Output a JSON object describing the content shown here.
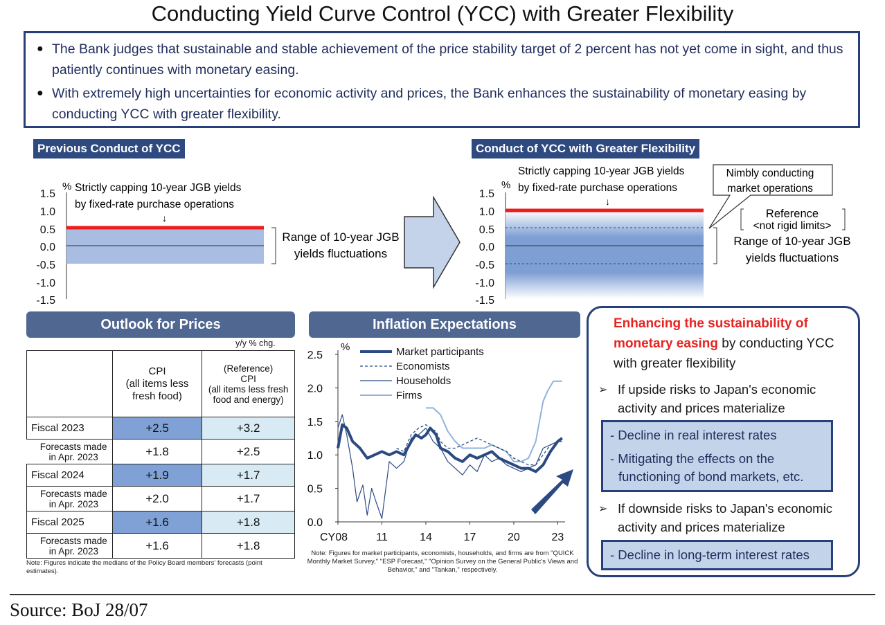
{
  "title": "Conducting Yield Curve Control (YCC) with Greater Flexibility",
  "intro": [
    "The Bank judges that sustainable and stable achievement of the price stability target of 2 percent has not yet come in sight, and thus patiently continues with monetary easing.",
    "With extremely high uncertainties for economic activity and prices, the Bank enhances the sustainability of monetary easing by conducting YCC with greater flexibility."
  ],
  "prev": {
    "header": "Previous Conduct of YCC",
    "unit": "%",
    "yticks": [
      "1.5",
      "1.0",
      "0.5",
      "0.0",
      "-0.5",
      "-1.0",
      "-1.5"
    ],
    "cap_line1": "Strictly capping 10-year JGB yields",
    "cap_line2": "by fixed-rate purchase operations",
    "arrow": "↓",
    "range_line1": "Range of 10-year JGB",
    "range_line2": "yields fluctuations",
    "cap": 0.5,
    "range": [
      -0.5,
      0.5
    ],
    "ylim": [
      -1.5,
      1.5
    ]
  },
  "new": {
    "header": "Conduct of YCC with Greater Flexibility",
    "unit": "%",
    "yticks": [
      "1.5",
      "1.0",
      "0.5",
      "0.0",
      "-0.5",
      "-1.0",
      "-1.5"
    ],
    "cap_line1": "Strictly capping 10-year JGB yields",
    "cap_line2": "by fixed-rate purchase operations",
    "arrow": "↓",
    "callout_line1": "Nimbly conducting",
    "callout_line2": "market operations",
    "ref_line1": "Reference",
    "ref_line2": "<not rigid limits>",
    "range_line1": "Range of 10-year JGB",
    "range_line2": "yields fluctuations",
    "cap": 1.0,
    "reference": [
      -0.5,
      0.5
    ],
    "ylim": [
      -1.5,
      1.5
    ]
  },
  "outlook": {
    "header": "Outlook for Prices",
    "unit": "y/y % chg.",
    "col1_l1": "CPI",
    "col1_l2": "(all items less",
    "col1_l3": "fresh food)",
    "col2_l1": "(Reference)",
    "col2_l2": "CPI",
    "col2_l3": "(all items less fresh",
    "col2_l4": "food and energy)",
    "rows": [
      {
        "label": "Fiscal 2023",
        "cpi": "+2.5",
        "core": "+3.2",
        "sub_l1": "Forecasts made",
        "sub_l2": "in Apr. 2023",
        "sub_cpi": "+1.8",
        "sub_core": "+2.5"
      },
      {
        "label": "Fiscal 2024",
        "cpi": "+1.9",
        "core": "+1.7",
        "sub_l1": "Forecasts made",
        "sub_l2": "in Apr. 2023",
        "sub_cpi": "+2.0",
        "sub_core": "+1.7"
      },
      {
        "label": "Fiscal 2025",
        "cpi": "+1.6",
        "core": "+1.8",
        "sub_l1": "Forecasts made",
        "sub_l2": "in Apr. 2023",
        "sub_cpi": "+1.6",
        "sub_core": "+1.8"
      }
    ],
    "note": "Note: Figures indicate the medians of the Policy Board members' forecasts (point estimates)."
  },
  "inflation": {
    "header": "Inflation Expectations",
    "note": "Note: Figures for market participants, economists, households, and firms are from \"QUICK Monthly Market Survey,\" \"ESP Forecast,\" \"Opinion Survey on the General Public's Views and Behavior,\" and \"Tankan,\" respectively."
  },
  "chart_data": {
    "type": "line",
    "title": "Inflation Expectations",
    "ylabel": "%",
    "ylim": [
      0,
      2.5
    ],
    "yticks": [
      "0.0",
      "0.5",
      "1.0",
      "1.5",
      "2.0",
      "2.5"
    ],
    "xlim": [
      2008,
      2023.5
    ],
    "xticks": [
      {
        "x": 2008,
        "label": "CY08"
      },
      {
        "x": 2011,
        "label": "11"
      },
      {
        "x": 2014,
        "label": "14"
      },
      {
        "x": 2017,
        "label": "17"
      },
      {
        "x": 2020,
        "label": "20"
      },
      {
        "x": 2023,
        "label": "23"
      }
    ],
    "series": [
      {
        "name": "Market participants",
        "color": "#2b4a82",
        "width": 4,
        "dash": "",
        "x": [
          2008,
          2008.3,
          2008.6,
          2009,
          2009.5,
          2010,
          2010.5,
          2011,
          2011.5,
          2012,
          2012.5,
          2013,
          2013.3,
          2013.7,
          2014,
          2014.3,
          2014.7,
          2015,
          2015.5,
          2016,
          2016.5,
          2017,
          2017.5,
          2018,
          2018.5,
          2019,
          2019.5,
          2020,
          2020.5,
          2021,
          2021.5,
          2022,
          2022.5,
          2023,
          2023.3
        ],
        "y": [
          1.1,
          1.45,
          1.4,
          1.2,
          1.1,
          0.95,
          1.0,
          1.05,
          1.0,
          1.05,
          1.0,
          1.2,
          1.3,
          1.25,
          1.3,
          1.4,
          1.3,
          1.1,
          1.05,
          0.95,
          0.9,
          1.0,
          0.95,
          1.0,
          1.05,
          0.95,
          0.9,
          0.85,
          0.8,
          0.8,
          0.75,
          0.85,
          1.05,
          1.2,
          1.25
        ]
      },
      {
        "name": "Economists",
        "color": "#2b4a82",
        "width": 1.3,
        "dash": "4,3",
        "x": [
          2012,
          2012.5,
          2013,
          2013.5,
          2014,
          2014.3,
          2014.7,
          2015,
          2015.5,
          2016,
          2016.5,
          2017,
          2017.5,
          2018,
          2018.5,
          2019,
          2019.5,
          2020,
          2020.5,
          2021,
          2021.5,
          2022,
          2022.5,
          2023,
          2023.3
        ],
        "y": [
          1.1,
          1.05,
          1.3,
          1.4,
          1.45,
          1.4,
          1.35,
          1.2,
          1.1,
          1.1,
          1.15,
          1.2,
          1.25,
          1.2,
          1.15,
          1.1,
          1.05,
          0.95,
          0.9,
          0.85,
          0.85,
          1.0,
          1.15,
          1.2,
          1.2
        ]
      },
      {
        "name": "Households",
        "color": "#2b4a82",
        "width": 1.2,
        "dash": "",
        "x": [
          2008,
          2008.3,
          2008.6,
          2009,
          2009.3,
          2009.7,
          2010,
          2010.3,
          2010.6,
          2011,
          2011.5,
          2012,
          2012.5,
          2013,
          2013.5,
          2014,
          2014.5,
          2015,
          2015.5,
          2016,
          2016.5,
          2017,
          2017.5,
          2018,
          2018.5,
          2019,
          2019.5,
          2020,
          2020.5,
          2021,
          2021.5,
          2022,
          2022.5,
          2023,
          2023.3
        ],
        "y": [
          1.4,
          1.6,
          1.3,
          0.8,
          0.3,
          0.55,
          0.1,
          0.5,
          0.3,
          0.05,
          0.9,
          0.8,
          0.9,
          1.25,
          1.3,
          1.4,
          1.2,
          1.1,
          0.9,
          0.8,
          0.7,
          0.85,
          0.75,
          1.0,
          0.9,
          0.95,
          0.85,
          0.8,
          0.75,
          0.8,
          0.85,
          1.1,
          1.15,
          1.2,
          1.2
        ]
      },
      {
        "name": "Firms",
        "color": "#8fb4dd",
        "width": 2,
        "dash": "",
        "x": [
          2014,
          2014.5,
          2015,
          2015.5,
          2016,
          2016.5,
          2017,
          2017.5,
          2018,
          2018.5,
          2019,
          2019.5,
          2020,
          2020.5,
          2021,
          2021.5,
          2022,
          2022.3,
          2022.7,
          2023,
          2023.3
        ],
        "y": [
          1.7,
          1.7,
          1.6,
          1.35,
          1.2,
          1.1,
          1.1,
          1.1,
          1.1,
          1.15,
          1.1,
          1.05,
          0.9,
          0.9,
          0.95,
          1.2,
          1.8,
          1.95,
          2.1,
          2.1,
          2.1
        ]
      }
    ]
  },
  "right": {
    "red_text": "Enhancing the sustainability of monetary easing",
    "rest_text": " by conducting YCC with greater flexibility",
    "up_bullet": "If upside risks to Japan's economic activity and prices materialize",
    "up_item1": "- Decline in real interest rates",
    "up_item2_l1": "- Mitigating the effects on the",
    "up_item2_l2": "functioning of bond markets, etc.",
    "down_bullet": "If downside risks to Japan's economic activity and prices materialize",
    "down_item1": "- Decline in long-term interest rates"
  },
  "source": "Source: BoJ 28/07"
}
